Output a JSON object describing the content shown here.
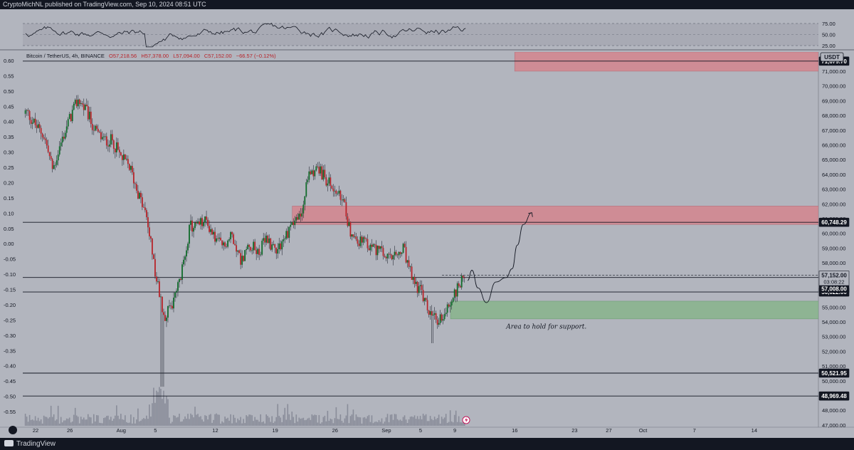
{
  "header": {
    "published_text": "CryptoMichNL published on TradingView.com, Sep 10, 2024 08:51 UTC"
  },
  "footer": {
    "brand": "TradingView"
  },
  "colors": {
    "background": "#b2b5be",
    "up_candle": "#0f6b2a",
    "down_candle": "#b8242a",
    "wick": "#2a2e39",
    "resistance_zone": "#cf8c95",
    "support_zone": "#8eb493",
    "volume": "#7b7f8c",
    "rsi_band": "#a6a9b2"
  },
  "chart_data": [
    {
      "type": "candlestick",
      "symbol_line": {
        "pair": "Bitcoin / TetherUS, 4h, BINANCE",
        "open": "O57,218.56",
        "high": "H57,378.00",
        "low": "L57,094.00",
        "close": "C57,152.00",
        "change": "−66.57 (−0.12%)"
      },
      "currency": "USDT",
      "x_axis": {
        "ticks": [
          "22",
          "26",
          "Aug",
          "5",
          "12",
          "19",
          "26",
          "Sep",
          "5",
          "9",
          "16",
          "23",
          "27",
          "Oct",
          "7",
          "14"
        ],
        "tick_days": [
          -10,
          -6,
          0,
          4,
          11,
          18,
          25,
          31,
          35,
          39,
          46,
          53,
          57,
          61,
          67,
          74
        ],
        "range_days": [
          -11.5,
          81.5
        ]
      },
      "y_axis_right": {
        "ticks": [
          "47,000.00",
          "48,000.00",
          "49,000.00",
          "50,000.00",
          "51,000.00",
          "52,000.00",
          "53,000.00",
          "54,000.00",
          "55,000.00",
          "56,000.00",
          "57,000.00",
          "58,000.00",
          "59,000.00",
          "60,000.00",
          "61,000.00",
          "62,000.00",
          "63,000.00",
          "64,000.00",
          "65,000.00",
          "66,000.00",
          "67,000.00",
          "68,000.00",
          "69,000.00",
          "70,000.00",
          "71,000.00"
        ],
        "range": [
          46900,
          72300
        ]
      },
      "y_axis_left": {
        "ticks": [
          "0.60",
          "0.55",
          "0.50",
          "0.45",
          "0.40",
          "0.35",
          "0.30",
          "0.25",
          "0.20",
          "0.15",
          "0.10",
          "0.05",
          "0.00",
          "-0.05",
          "-0.10",
          "-0.15",
          "-0.20",
          "-0.25",
          "-0.30",
          "-0.35",
          "-0.40",
          "-0.45",
          "-0.50",
          "-0.55"
        ]
      },
      "price_path": [
        [
          -11,
          68200
        ],
        [
          -10,
          67300
        ],
        [
          -9,
          66600
        ],
        [
          -8,
          64300
        ],
        [
          -7,
          66200
        ],
        [
          -6,
          67800
        ],
        [
          -5,
          69100
        ],
        [
          -4,
          68200
        ],
        [
          -3,
          66900
        ],
        [
          -2,
          66300
        ],
        [
          -1,
          66300
        ],
        [
          0,
          65100
        ],
        [
          1,
          64500
        ],
        [
          2,
          62700
        ],
        [
          3,
          61000
        ],
        [
          4,
          57200
        ],
        [
          5,
          54400
        ],
        [
          6,
          55100
        ],
        [
          7,
          57100
        ],
        [
          8,
          60400
        ],
        [
          9,
          60600
        ],
        [
          10,
          60800
        ],
        [
          11,
          59600
        ],
        [
          12,
          59100
        ],
        [
          13,
          59900
        ],
        [
          14,
          58100
        ],
        [
          15,
          59300
        ],
        [
          16,
          58700
        ],
        [
          17,
          59600
        ],
        [
          18,
          59000
        ],
        [
          19,
          59500
        ],
        [
          20,
          60800
        ],
        [
          21,
          61100
        ],
        [
          22,
          64200
        ],
        [
          23,
          64400
        ],
        [
          24,
          63600
        ],
        [
          25,
          62900
        ],
        [
          26,
          62000
        ],
        [
          27,
          59700
        ],
        [
          28,
          59400
        ],
        [
          29,
          59100
        ],
        [
          30,
          58900
        ],
        [
          31,
          58300
        ],
        [
          32,
          58300
        ],
        [
          33,
          58900
        ],
        [
          34,
          56900
        ],
        [
          35,
          56100
        ],
        [
          36,
          54600
        ],
        [
          37,
          54000
        ],
        [
          38,
          54800
        ],
        [
          39,
          55900
        ],
        [
          40,
          57150
        ]
      ],
      "price_path_note": "approximate closes read off the candles",
      "last_price": 57152,
      "countdown": "03:08:22",
      "horizontal_levels": [
        {
          "value": 71679.7,
          "label": "71,679.70"
        },
        {
          "value": 60748.29,
          "label": "60,748.29"
        },
        {
          "value": 57008.0,
          "label": "57,008.00"
        },
        {
          "value": 56022.0,
          "label": "56,022.00"
        },
        {
          "value": 50521.95,
          "label": "50,521.95"
        },
        {
          "value": 48969.48,
          "label": "48,969.48"
        }
      ],
      "zones": [
        {
          "kind": "resistance",
          "from_day": 46,
          "low": 71000,
          "high": 72300
        },
        {
          "kind": "resistance",
          "from_day": 20,
          "low": 60600,
          "high": 61850
        },
        {
          "kind": "support",
          "from_day": 38.5,
          "low": 54200,
          "high": 55400
        }
      ],
      "projection_path": [
        [
          40.5,
          56800
        ],
        [
          41,
          57500
        ],
        [
          41.7,
          56300
        ],
        [
          42.7,
          55300
        ],
        [
          43.8,
          56700
        ],
        [
          45,
          57000
        ],
        [
          45.7,
          57600
        ],
        [
          46.3,
          59200
        ],
        [
          47,
          60600
        ],
        [
          48,
          61400
        ]
      ],
      "annotations": [
        {
          "text": "Area to hold for support.",
          "day": 45,
          "price": 53550
        }
      ],
      "rsi_axis": {
        "ticks": [
          "75.00",
          "50.00",
          "25.00"
        ],
        "values": [
          75,
          50,
          25
        ]
      },
      "rsi_series_note": "approximate oscillation between 25 and 75"
    }
  ]
}
